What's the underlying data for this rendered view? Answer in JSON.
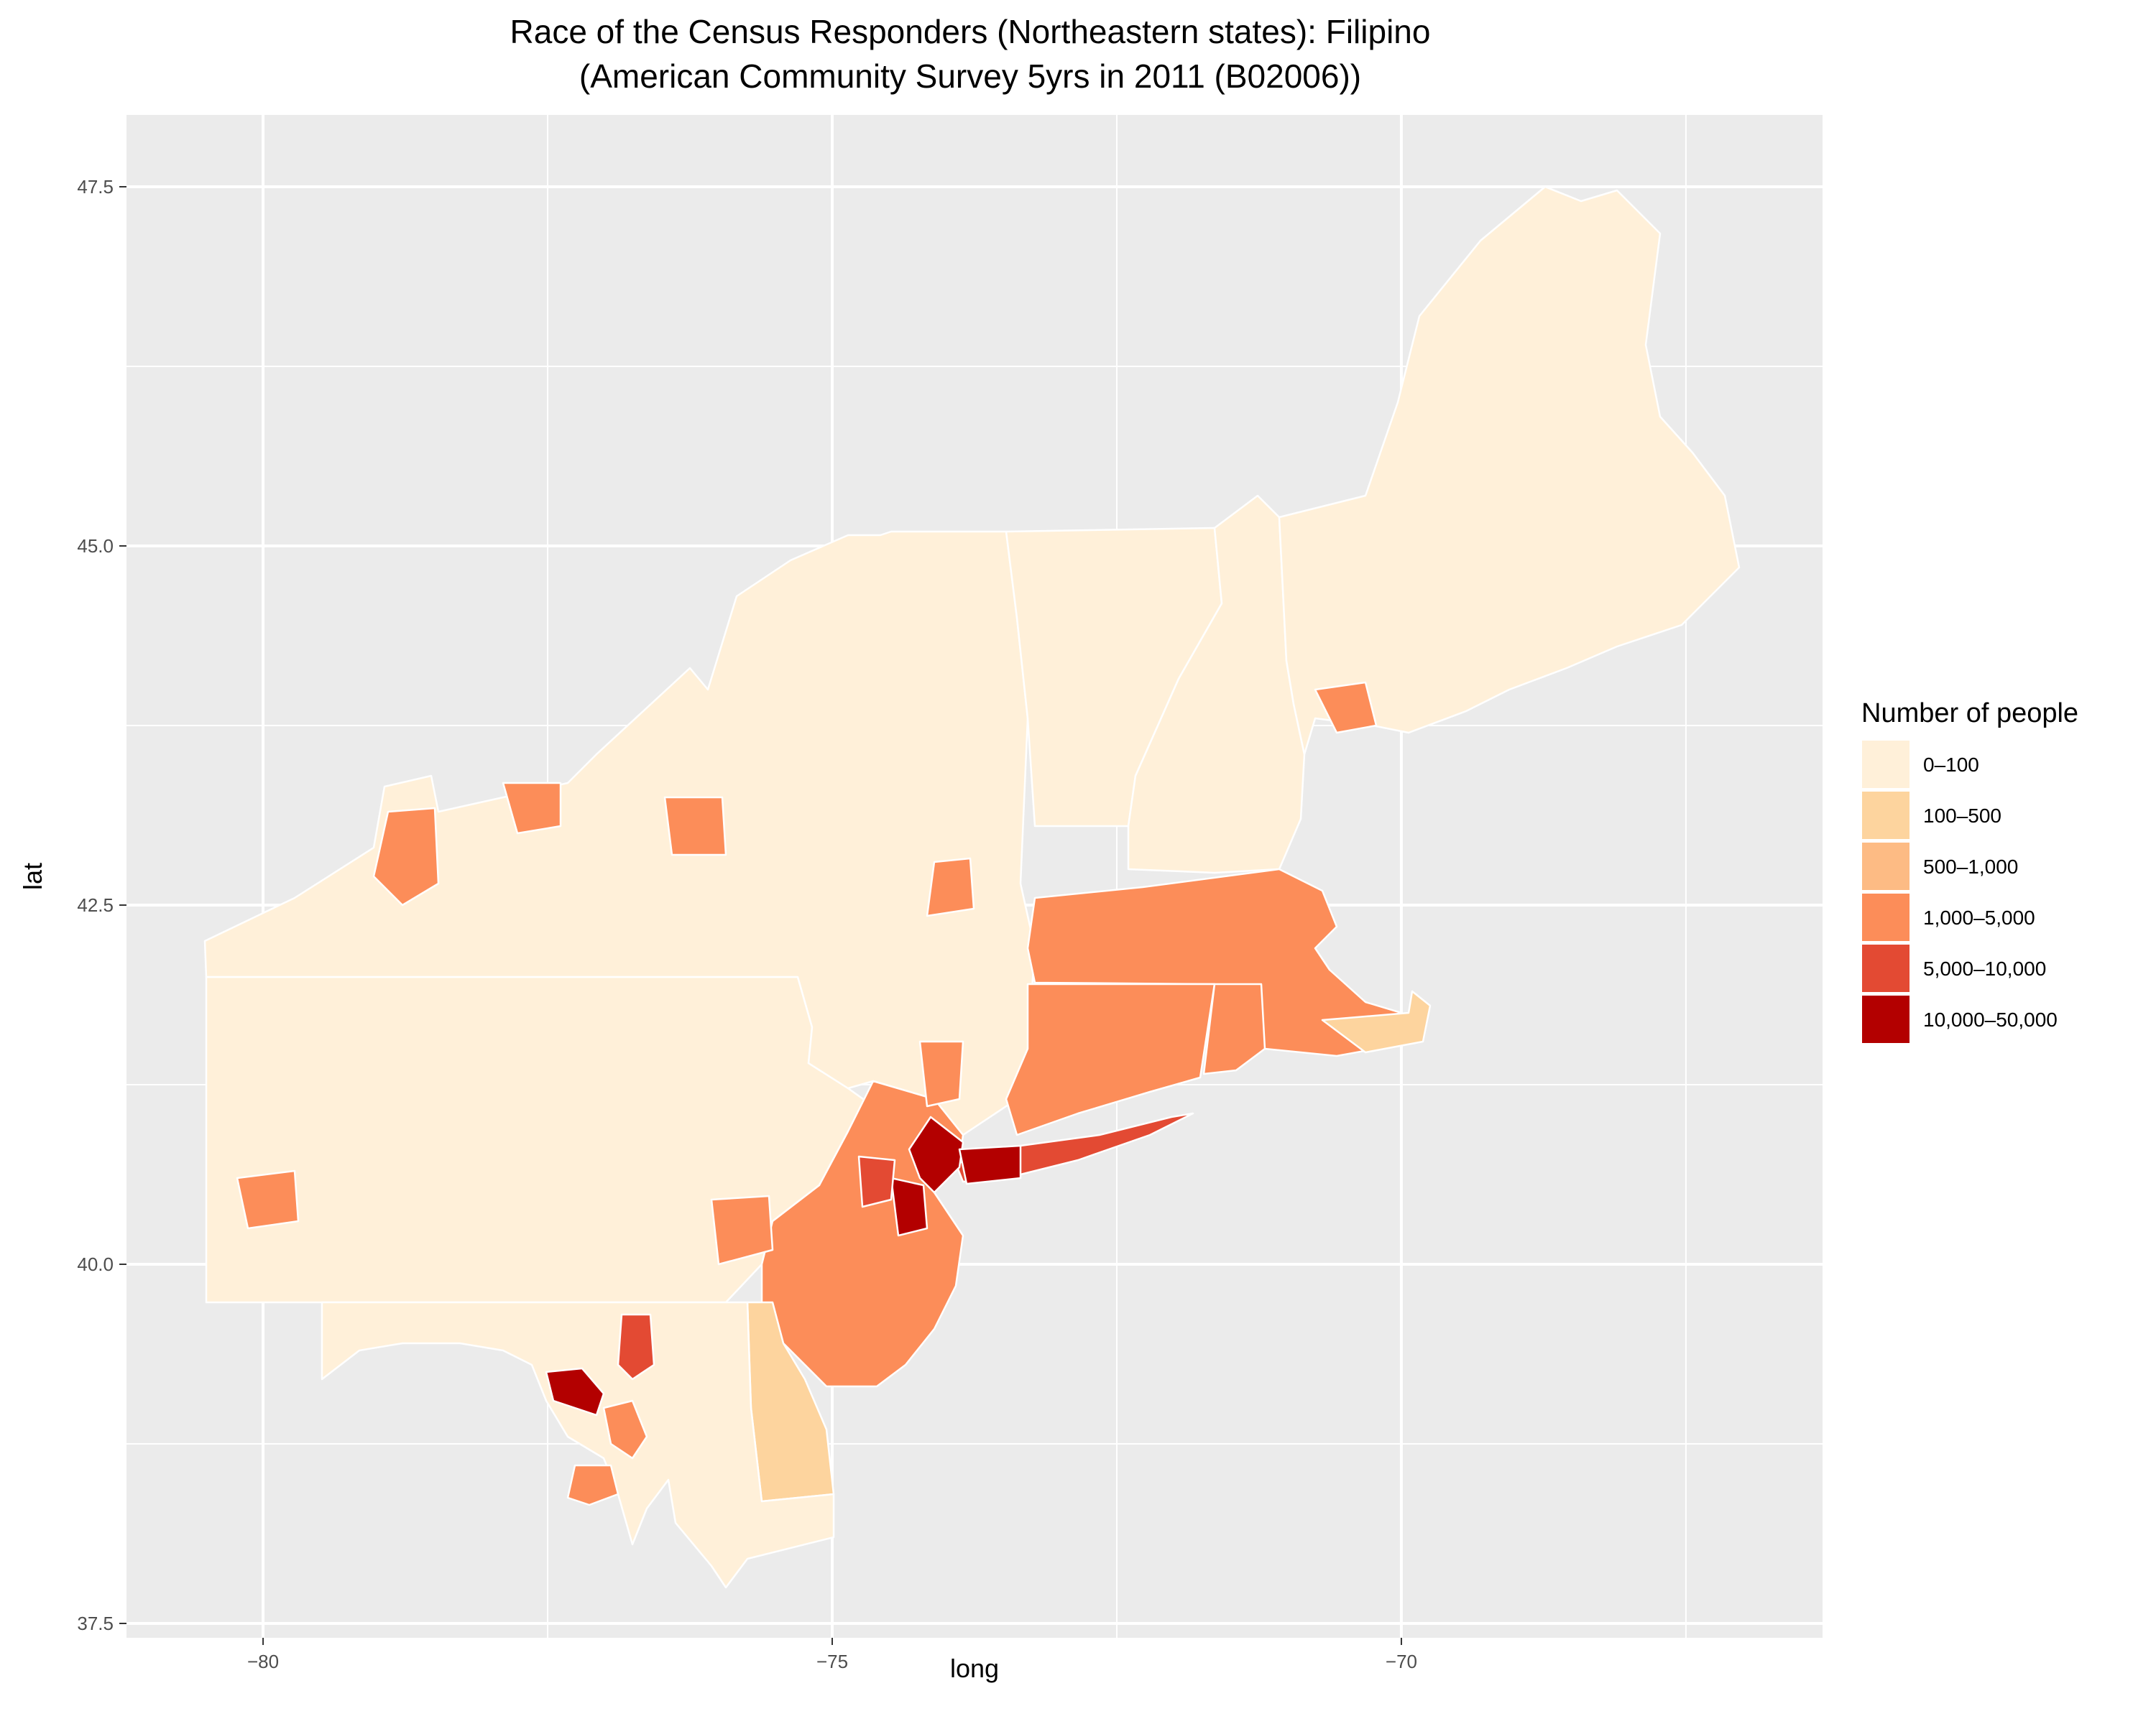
{
  "title_line1": "Race of the Census Responders (Northeastern states): Filipino",
  "title_line2": "(American Community Survey 5yrs in 2011 (B02006))",
  "xlabel": "long",
  "ylabel": "lat",
  "x_ticks": [
    "−80",
    "−75",
    "−70"
  ],
  "y_ticks": [
    "47.5",
    "45.0",
    "42.5",
    "40.0",
    "37.5"
  ],
  "legend": {
    "title": "Number of people",
    "placement": "right",
    "items": [
      {
        "label": "0–100",
        "color": "#fff0d9"
      },
      {
        "label": "100–500",
        "color": "#fdd49e"
      },
      {
        "label": "500–1,000",
        "color": "#fdbb84"
      },
      {
        "label": "1,000–5,000",
        "color": "#fc8d59"
      },
      {
        "label": "5,000–10,000",
        "color": "#e34a33"
      },
      {
        "label": "10,000–50,000",
        "color": "#b30000"
      }
    ]
  },
  "chart_data": {
    "type": "map",
    "projection": "long/lat",
    "xlim": [
      -81.2,
      -66.3
    ],
    "ylim": [
      37.4,
      48.0
    ],
    "x_breaks": [
      -80,
      -75,
      -70
    ],
    "y_breaks": [
      37.5,
      40.0,
      42.5,
      45.0,
      47.5
    ],
    "grid": true,
    "panel_background": "#ebebeb",
    "region_outline": "#ffffff",
    "regions": "counties of the northeastern United States (ME, NH, VT, MA, RI, CT, NY, NJ, PA, DE, MD)"
  }
}
